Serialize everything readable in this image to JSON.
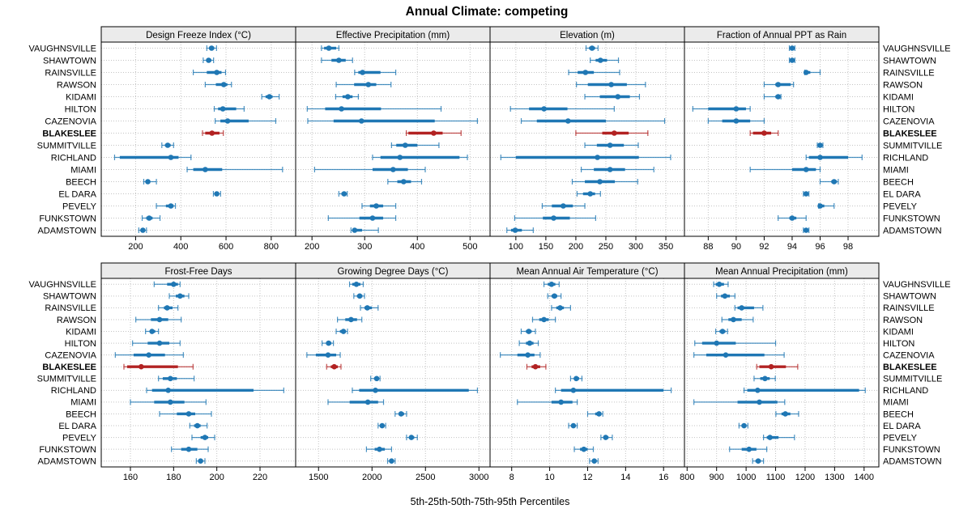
{
  "title": "Annual Climate: competing",
  "xlabel": "5th-25th-50th-75th-95th Percentiles",
  "colors": {
    "normal": "#1F77B4",
    "highlight": "#B22222",
    "grid": "#C3C3C3",
    "strip_bg": "#EBEBEB",
    "border": "#000000",
    "text": "#000000",
    "background": "#FFFFFF"
  },
  "chart_data": {
    "type": "dot-whisker-trellis",
    "percentile_levels": [
      5,
      25,
      50,
      75,
      95
    ],
    "legend_note": "thin line = 5th-95th, thick line = 25th-75th, dot = 50th percentile",
    "stations": [
      "VAUGHNSVILLE",
      "SHAWTOWN",
      "RAINSVILLE",
      "RAWSON",
      "KIDAMI",
      "HILTON",
      "CAZENOVIA",
      "BLAKESLEE",
      "SUMMITVILLE",
      "RICHLAND",
      "MIAMI",
      "BEECH",
      "EL DARA",
      "PEVELY",
      "FUNKSTOWN",
      "ADAMSTOWN"
    ],
    "highlight_station": "BLAKESLEE",
    "grid": "dotted",
    "panels": [
      {
        "title": "Design Freeze Index (°C)",
        "row": 0,
        "col": 0,
        "xticks": [
          200,
          400,
          600,
          800
        ],
        "xlim": [
          48,
          908
        ],
        "values": [
          [
            515,
            525,
            536,
            548,
            558
          ],
          [
            499,
            512,
            523,
            535,
            545
          ],
          [
            455,
            515,
            559,
            580,
            598
          ],
          [
            508,
            555,
            590,
            606,
            624
          ],
          [
            758,
            775,
            792,
            806,
            835
          ],
          [
            548,
            565,
            586,
            645,
            680
          ],
          [
            552,
            575,
            607,
            700,
            820
          ],
          [
            496,
            508,
            538,
            571,
            588
          ],
          [
            316,
            330,
            342,
            355,
            368
          ],
          [
            107,
            130,
            356,
            390,
            445
          ],
          [
            428,
            455,
            508,
            583,
            850
          ],
          [
            236,
            245,
            254,
            265,
            292
          ],
          [
            544,
            551,
            559,
            567,
            576
          ],
          [
            292,
            334,
            356,
            368,
            376
          ],
          [
            229,
            247,
            260,
            275,
            308
          ],
          [
            214,
            224,
            232,
            240,
            248
          ]
        ]
      },
      {
        "title": "Effective Precipitation (mm)",
        "row": 0,
        "col": 1,
        "xticks": [
          200,
          300,
          400,
          500
        ],
        "xlim": [
          169,
          538
        ],
        "values": [
          [
            218,
            223,
            232,
            246,
            251
          ],
          [
            218,
            237,
            251,
            264,
            277
          ],
          [
            281,
            288,
            296,
            330,
            359
          ],
          [
            246,
            280,
            307,
            322,
            350
          ],
          [
            245,
            258,
            268,
            277,
            288
          ],
          [
            191,
            225,
            256,
            331,
            445
          ],
          [
            192,
            241,
            294,
            433,
            514
          ],
          [
            379,
            383,
            431,
            448,
            483
          ],
          [
            351,
            360,
            377,
            400,
            441
          ],
          [
            315,
            330,
            367,
            480,
            495
          ],
          [
            205,
            315,
            354,
            382,
            415
          ],
          [
            344,
            362,
            374,
            388,
            408
          ],
          [
            251,
            256,
            261,
            264,
            267
          ],
          [
            295,
            310,
            322,
            335,
            359
          ],
          [
            231,
            290,
            315,
            335,
            359
          ],
          [
            274,
            277,
            281,
            295,
            326
          ]
        ]
      },
      {
        "title": "Elevation (m)",
        "row": 0,
        "col": 2,
        "xticks": [
          100,
          150,
          200,
          250,
          300,
          350
        ],
        "xlim": [
          57,
          381
        ],
        "values": [
          [
            217,
            222,
            227,
            232,
            237
          ],
          [
            224,
            233,
            241,
            252,
            271
          ],
          [
            188,
            203,
            216,
            230,
            273
          ],
          [
            201,
            220,
            259,
            285,
            316
          ],
          [
            215,
            240,
            270,
            290,
            306
          ],
          [
            91,
            122,
            147,
            186,
            264
          ],
          [
            109,
            135,
            187,
            250,
            348
          ],
          [
            200,
            244,
            264,
            288,
            320
          ],
          [
            215,
            235,
            257,
            280,
            304
          ],
          [
            75,
            100,
            236,
            305,
            358
          ],
          [
            209,
            230,
            257,
            282,
            330
          ],
          [
            194,
            215,
            240,
            265,
            303
          ],
          [
            202,
            212,
            224,
            232,
            241
          ],
          [
            144,
            160,
            179,
            195,
            215
          ],
          [
            98,
            145,
            163,
            190,
            233
          ],
          [
            85,
            92,
            99,
            110,
            129
          ]
        ]
      },
      {
        "title": "Fraction of Annual PPT as Rain",
        "row": 0,
        "col": 3,
        "xticks": [
          88,
          90,
          92,
          94,
          96,
          98
        ],
        "xlim": [
          86.3,
          100.2
        ],
        "values": [
          [
            93.8,
            93.9,
            94,
            94.1,
            94.2
          ],
          [
            93.8,
            93.9,
            94,
            94.1,
            94.2
          ],
          [
            94.9,
            94.95,
            95,
            95.3,
            96
          ],
          [
            92,
            92.8,
            93,
            93.9,
            94.1
          ],
          [
            92,
            92.8,
            93,
            93.1,
            93.2
          ],
          [
            86.9,
            88,
            90,
            90.7,
            91
          ],
          [
            88,
            89,
            90,
            91,
            92
          ],
          [
            91,
            91.2,
            92,
            92.5,
            93
          ],
          [
            95.8,
            95.9,
            96,
            96.1,
            96.2
          ],
          [
            95,
            95.2,
            96,
            98,
            99
          ],
          [
            91,
            94,
            95,
            95.7,
            96
          ],
          [
            96,
            96.8,
            97,
            97.2,
            97.3
          ],
          [
            94.8,
            94.9,
            95,
            95.1,
            95.2
          ],
          [
            95.9,
            96,
            96,
            96.3,
            97
          ],
          [
            93,
            93.8,
            94,
            94.3,
            95
          ],
          [
            94.8,
            94.9,
            95,
            95.1,
            95.2
          ]
        ]
      },
      {
        "title": "Frost-Free Days",
        "row": 1,
        "col": 0,
        "xticks": [
          160,
          180,
          200,
          220
        ],
        "xlim": [
          146.5,
          236.5
        ],
        "values": [
          [
            171,
            177,
            180,
            182,
            183
          ],
          [
            178,
            181,
            183,
            185,
            187
          ],
          [
            173,
            175.5,
            177,
            179.5,
            182
          ],
          [
            162.5,
            169.5,
            173.5,
            177.5,
            183.5
          ],
          [
            167,
            169,
            170,
            171.5,
            173
          ],
          [
            161,
            168,
            173.5,
            178,
            183
          ],
          [
            153,
            161.5,
            168.5,
            176,
            184.5
          ],
          [
            157,
            158.5,
            165,
            182,
            189
          ],
          [
            173,
            175,
            178.5,
            181.5,
            189.5
          ],
          [
            167.5,
            170,
            177.5,
            217,
            231
          ],
          [
            160,
            171,
            178.5,
            185,
            195
          ],
          [
            173.5,
            181.5,
            187,
            190,
            197.5
          ],
          [
            187.5,
            189.5,
            191,
            192.5,
            195.5
          ],
          [
            188.5,
            192.5,
            194.5,
            196,
            199
          ],
          [
            179,
            183.5,
            187,
            191,
            196
          ],
          [
            190.5,
            191.5,
            192.5,
            193.5,
            194.5
          ]
        ]
      },
      {
        "title": "Growing Degree Days (°C)",
        "row": 1,
        "col": 1,
        "xticks": [
          1500,
          2000,
          2500,
          3000
        ],
        "xlim": [
          1286,
          3104
        ],
        "values": [
          [
            1790,
            1816,
            1854,
            1892,
            1918
          ],
          [
            1830,
            1860,
            1885,
            1910,
            1930
          ],
          [
            1892,
            1930,
            1956,
            2000,
            2057
          ],
          [
            1677,
            1750,
            1804,
            1860,
            1905
          ],
          [
            1665,
            1700,
            1733,
            1755,
            1771
          ],
          [
            1533,
            1570,
            1594,
            1620,
            1639
          ],
          [
            1391,
            1475,
            1589,
            1665,
            1703
          ],
          [
            1576,
            1615,
            1647,
            1680,
            1710
          ],
          [
            1988,
            2020,
            2044,
            2060,
            2075
          ],
          [
            1816,
            1880,
            2032,
            2905,
            2986
          ],
          [
            1589,
            1791,
            1961,
            2057,
            2108
          ],
          [
            2216,
            2250,
            2272,
            2300,
            2323
          ],
          [
            2057,
            2080,
            2095,
            2112,
            2128
          ],
          [
            2323,
            2350,
            2368,
            2395,
            2424
          ],
          [
            1948,
            2025,
            2070,
            2120,
            2183
          ],
          [
            2146,
            2168,
            2183,
            2200,
            2216
          ]
        ]
      },
      {
        "title": "Mean Annual Air Temperature (°C)",
        "row": 1,
        "col": 2,
        "xticks": [
          8,
          10,
          12,
          14,
          16
        ],
        "xlim": [
          6.86,
          17.1
        ],
        "values": [
          [
            9.7,
            9.9,
            10.1,
            10.3,
            10.5
          ],
          [
            9.9,
            10.1,
            10.25,
            10.4,
            10.6
          ],
          [
            10.1,
            10.35,
            10.55,
            10.75,
            11.1
          ],
          [
            9.1,
            9.45,
            9.7,
            9.95,
            10.3
          ],
          [
            8.5,
            8.75,
            8.9,
            9.05,
            9.25
          ],
          [
            8.4,
            8.75,
            8.95,
            9.15,
            9.4
          ],
          [
            7.4,
            8.3,
            8.85,
            9.2,
            9.5
          ],
          [
            8.8,
            9.05,
            9.25,
            9.5,
            9.8
          ],
          [
            11.1,
            11.3,
            11.4,
            11.55,
            11.7
          ],
          [
            10.3,
            10.6,
            11.25,
            16.0,
            16.4
          ],
          [
            8.3,
            10.1,
            10.6,
            11.2,
            11.45
          ],
          [
            12.0,
            12.4,
            12.6,
            12.7,
            12.8
          ],
          [
            11.0,
            11.15,
            11.25,
            11.35,
            11.45
          ],
          [
            12.7,
            12.85,
            12.95,
            13.1,
            13.3
          ],
          [
            11.3,
            11.6,
            11.8,
            12.0,
            12.3
          ],
          [
            12.1,
            12.25,
            12.35,
            12.45,
            12.55
          ]
        ]
      },
      {
        "title": "Mean Annual Precipitation (mm)",
        "row": 1,
        "col": 3,
        "xticks": [
          800,
          900,
          1000,
          1100,
          1200,
          1300,
          1400
        ],
        "xlim": [
          791,
          1450
        ],
        "values": [
          [
            890,
            897,
            909,
            925,
            939
          ],
          [
            900,
            915,
            928,
            945,
            962
          ],
          [
            962,
            971,
            985,
            1027,
            1057
          ],
          [
            918,
            940,
            957,
            985,
            1024
          ],
          [
            897,
            910,
            920,
            930,
            937
          ],
          [
            826,
            851,
            900,
            965,
            1100
          ],
          [
            823,
            865,
            931,
            1062,
            1129
          ],
          [
            1036,
            1045,
            1085,
            1135,
            1175
          ],
          [
            1027,
            1048,
            1064,
            1080,
            1099
          ],
          [
            993,
            1004,
            1039,
            1383,
            1404
          ],
          [
            823,
            971,
            1045,
            1106,
            1131
          ],
          [
            1101,
            1120,
            1133,
            1150,
            1178
          ],
          [
            976,
            985,
            993,
            1000,
            1006
          ],
          [
            1059,
            1070,
            1081,
            1110,
            1164
          ],
          [
            944,
            985,
            1010,
            1035,
            1070
          ],
          [
            1022,
            1032,
            1041,
            1050,
            1059
          ]
        ]
      }
    ]
  }
}
